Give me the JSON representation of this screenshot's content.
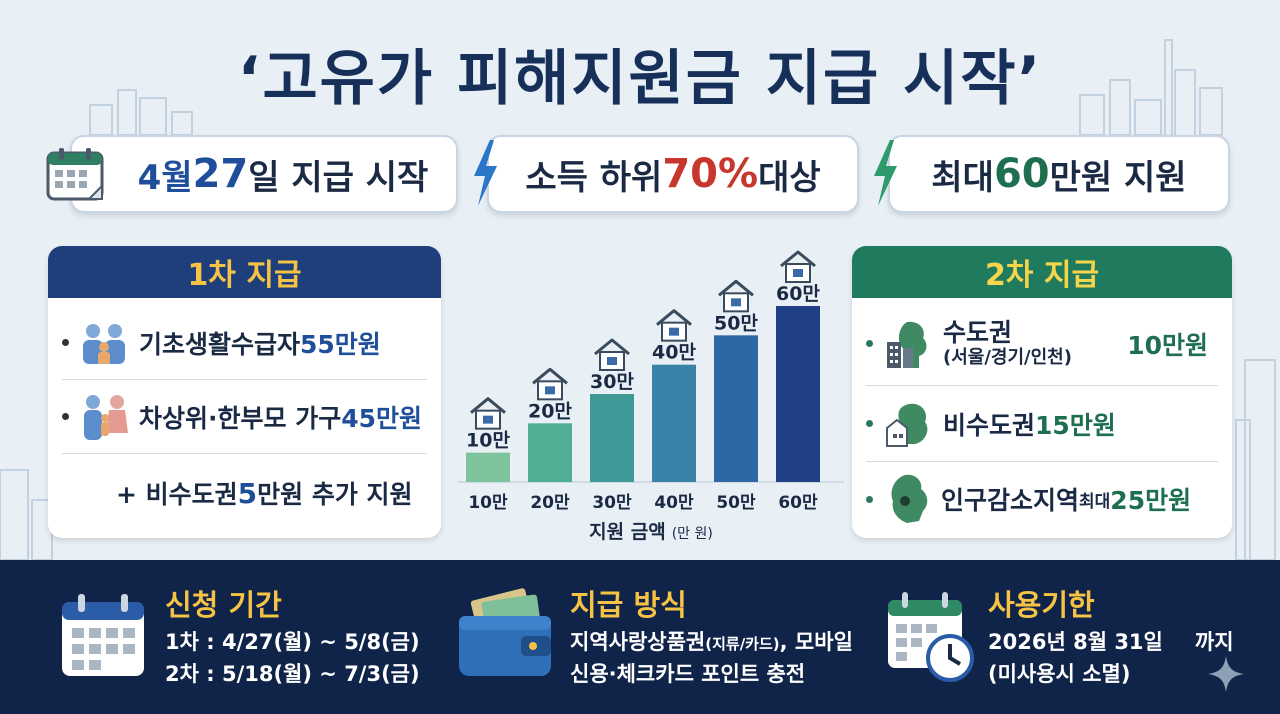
{
  "title": "‘고유가 피해지원금 지급 시작’",
  "highlights": {
    "date": {
      "prefix": "4월 ",
      "num": "27",
      "suffix": "일 지급 시작"
    },
    "target": {
      "prefix": "소득 하위 ",
      "num": "70%",
      "suffix": " 대상"
    },
    "max": {
      "prefix": "최대 ",
      "num": "60",
      "suffix": "만원 지원"
    }
  },
  "first_payment": {
    "header": "1차 지급",
    "items": [
      {
        "label": "기초생활수급자 ",
        "amount": "55만원"
      },
      {
        "label": "차상위·한부모 가구 ",
        "amount": "45만원"
      }
    ],
    "extra": {
      "prefix": "+ 비수도권 ",
      "amount": "5",
      "suffix": "만원 추가 지원"
    }
  },
  "second_payment": {
    "header": "2차 지급",
    "items": [
      {
        "label": "수도권",
        "sub": "(서울/경기/인천)",
        "amount": "10만원"
      },
      {
        "label": "비수도권 ",
        "amount": "15만원"
      },
      {
        "label": "인구감소지역 ",
        "qualifier": "최대 ",
        "amount": "25만원"
      }
    ]
  },
  "chart_data": {
    "type": "bar",
    "categories": [
      "10만",
      "20만",
      "30만",
      "40만",
      "50만",
      "60만"
    ],
    "values": [
      10,
      20,
      30,
      40,
      50,
      60
    ],
    "data_labels": [
      "10만",
      "20만",
      "30만",
      "40만",
      "50만",
      "60만"
    ],
    "xlabel": "지원 금액",
    "xlabel_unit": "(만 원)",
    "colors": [
      "#7dc49a",
      "#4fae93",
      "#3f9a97",
      "#3a83a8",
      "#2e67a5",
      "#1f3f86"
    ]
  },
  "bottom": {
    "apply": {
      "title": "신청 기간",
      "lines": [
        "1차 : 4/27(월) ~ 5/8(금)",
        "2차 : 5/18(월) ~ 7/3(금)"
      ]
    },
    "method": {
      "title": "지급 방식",
      "line1_a": "지역사랑상품권",
      "line1_b": "(지류/카드)",
      "line1_c": ", 모바일",
      "line2": "신용·체크카드 포인트 충전"
    },
    "expiry": {
      "title": "사용기한",
      "line1": "2026년 8월 31일",
      "line1_end": "까지",
      "line2": "(미사용시 소멸)"
    }
  },
  "colors": {
    "navy": "#17305a",
    "header_blue": "#1f3f7c",
    "header_green": "#1f7a5e",
    "accent_yellow": "#f6c344",
    "accent_red": "#c8372d",
    "bottom_bg": "#10244a"
  }
}
